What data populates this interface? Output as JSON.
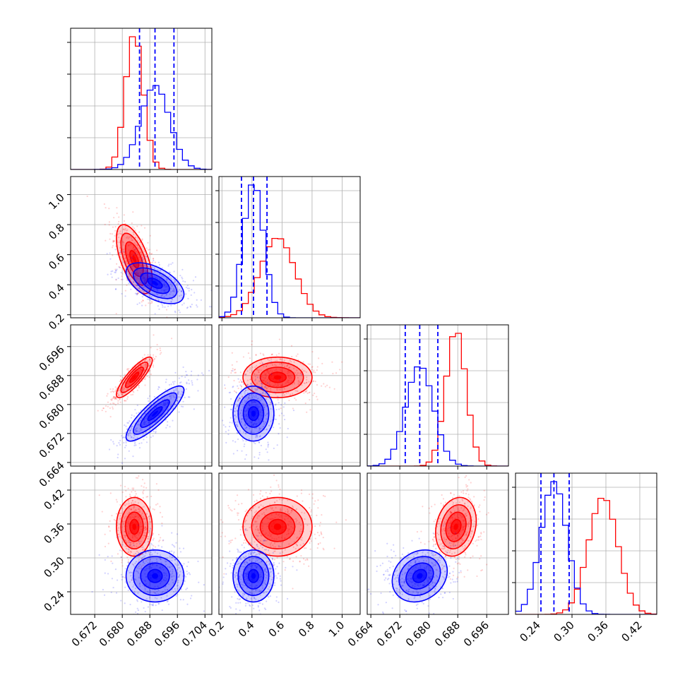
{
  "chart_data": {
    "type": "corner",
    "parameters": [
      {
        "id": "p0",
        "range": [
          0.665,
          0.706
        ],
        "ticks": [
          "0.672",
          "0.680",
          "0.688",
          "0.696",
          "0.704"
        ]
      },
      {
        "id": "p1",
        "range": [
          0.18,
          1.12
        ],
        "ticks": [
          "0.2",
          "0.4",
          "0.6",
          "0.8",
          "1.0"
        ]
      },
      {
        "id": "p2",
        "range": [
          0.663,
          0.702
        ],
        "ticks": [
          "0.664",
          "0.672",
          "0.680",
          "0.688",
          "0.696"
        ]
      },
      {
        "id": "p3",
        "range": [
          0.2,
          0.45
        ],
        "ticks": [
          "0.24",
          "0.30",
          "0.36",
          "0.42"
        ]
      }
    ],
    "series": [
      {
        "color": "#ff0000",
        "means": [
          0.6835,
          0.57,
          0.6875,
          0.355
        ],
        "sds": [
          0.0026,
          0.115,
          0.0028,
          0.026
        ]
      },
      {
        "color": "#0000ff",
        "means": [
          0.6895,
          0.41,
          0.6775,
          0.268
        ],
        "sds": [
          0.0042,
          0.068,
          0.0038,
          0.023
        ]
      }
    ],
    "quantile_lines": {
      "color": "#0000ff",
      "style": "dashed",
      "values": [
        [
          0.685,
          0.6895,
          0.695
        ],
        [
          0.33,
          0.41,
          0.5
        ],
        [
          0.6735,
          0.6775,
          0.6825
        ],
        [
          0.245,
          0.268,
          0.295
        ]
      ]
    },
    "correlations": {
      "red": [
        [
          0,
          1,
          -0.6
        ],
        [
          0,
          2,
          0.85
        ],
        [
          0,
          3,
          0.0
        ],
        [
          1,
          2,
          0.0
        ],
        [
          1,
          3,
          0.0
        ],
        [
          2,
          3,
          0.2
        ]
      ],
      "blue": [
        [
          0,
          1,
          -0.55
        ],
        [
          0,
          2,
          0.85
        ],
        [
          0,
          3,
          0.0
        ],
        [
          1,
          2,
          0.0
        ],
        [
          1,
          3,
          0.0
        ],
        [
          2,
          3,
          0.2
        ]
      ]
    },
    "grid": true
  }
}
